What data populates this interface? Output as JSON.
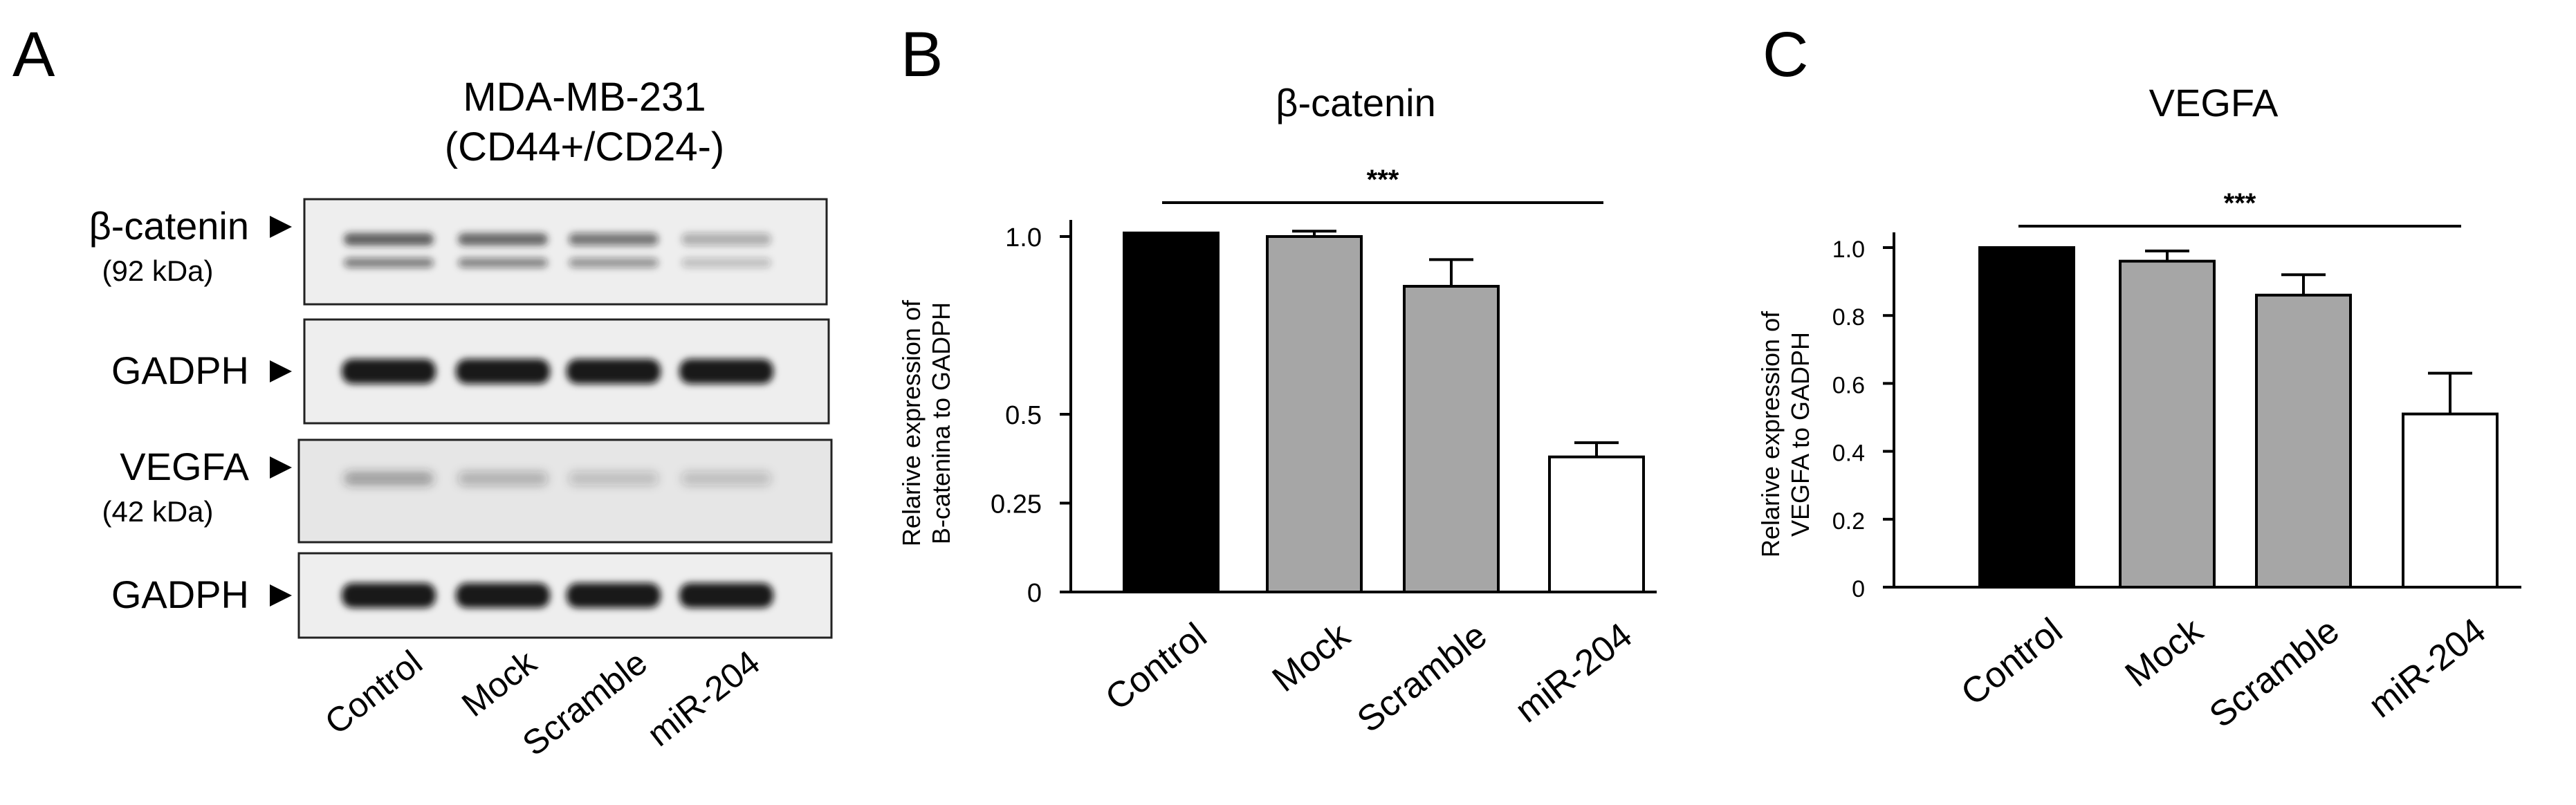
{
  "panel_a": {
    "label": "A",
    "title_line1": "MDA-MB-231",
    "title_line2": "(CD44+/CD24-)",
    "lanes": [
      "Control",
      "Mock",
      "Scramble",
      "miR-204"
    ],
    "blots": [
      {
        "name": "β-catenin",
        "sub": "(92 kDa)",
        "intensity": [
          0.8,
          0.75,
          0.65,
          0.35
        ]
      },
      {
        "name": "GADPH",
        "sub": "",
        "intensity": [
          1.0,
          1.0,
          1.0,
          1.0
        ]
      },
      {
        "name": "VEGFA",
        "sub": "(42 kDa)",
        "intensity": [
          0.55,
          0.4,
          0.3,
          0.3
        ]
      },
      {
        "name": "GADPH",
        "sub": "",
        "intensity": [
          1.0,
          1.0,
          1.0,
          1.0
        ]
      }
    ]
  },
  "chart_data": [
    {
      "type": "bar",
      "panel": "B",
      "title": "β-catenin",
      "ylabel_line1": "Relarive expression of",
      "ylabel_line2": "B-catenina to GADPH",
      "categories": [
        "Control",
        "Mock",
        "Scramble",
        "miR-204"
      ],
      "values": [
        1.01,
        1.0,
        0.86,
        0.38
      ],
      "errors": [
        0,
        0.015,
        0.075,
        0.04
      ],
      "bar_colors": [
        "#000000",
        "#a6a6a6",
        "#a6a6a6",
        "#ffffff"
      ],
      "yticks": [
        0,
        0.25,
        0.5,
        1.0
      ],
      "ytick_labels": [
        "0",
        "0.25",
        "0.5",
        "1.0"
      ],
      "ylim": [
        0,
        1.0
      ],
      "significance": "***",
      "grid": false
    },
    {
      "type": "bar",
      "panel": "C",
      "title": "VEGFA",
      "ylabel_line1": "Relarive expression of",
      "ylabel_line2": "VEGFA to GADPH",
      "categories": [
        "Control",
        "Mock",
        "Scramble",
        "miR-204"
      ],
      "values": [
        1.0,
        0.96,
        0.86,
        0.51
      ],
      "errors": [
        0,
        0.03,
        0.06,
        0.12
      ],
      "bar_colors": [
        "#000000",
        "#a6a6a6",
        "#a6a6a6",
        "#ffffff"
      ],
      "yticks": [
        0,
        0.2,
        0.4,
        0.6,
        0.8,
        1.0
      ],
      "ytick_labels": [
        "0",
        "0.2",
        "0.4",
        "0.6",
        "0.8",
        "1.0"
      ],
      "ylim": [
        0,
        1.0
      ],
      "significance": "***",
      "grid": false
    }
  ]
}
